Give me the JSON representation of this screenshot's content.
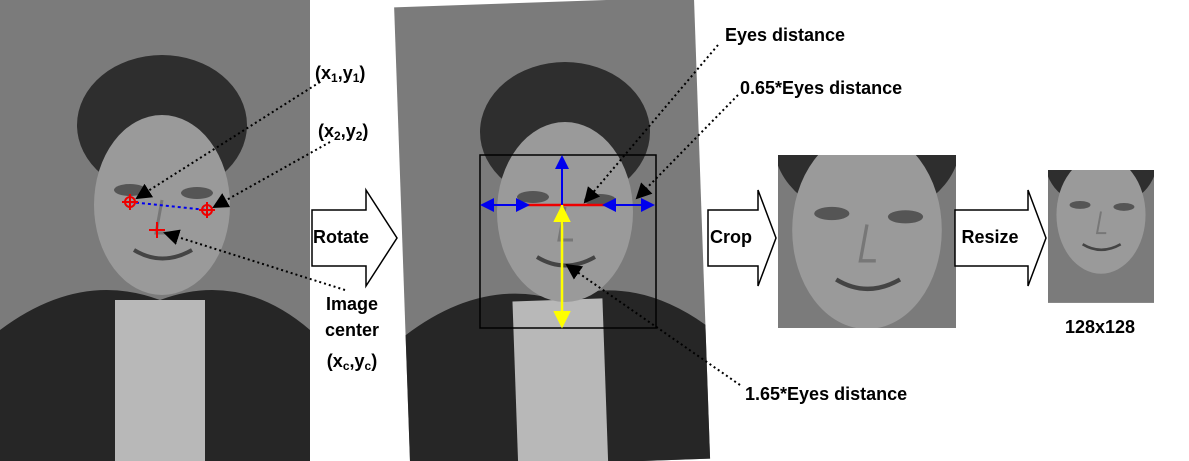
{
  "labels": {
    "p1": [
      "(x",
      "1",
      ",y",
      "1",
      ")"
    ],
    "p2": [
      "(x",
      "2",
      ",y",
      "2",
      ")"
    ],
    "image": "Image",
    "center": "center",
    "pc": [
      "(x",
      "c",
      ",y",
      "c",
      ")"
    ],
    "rotate": "Rotate",
    "eyes_distance": "Eyes distance",
    "width_ratio": "0.65*Eyes distance",
    "height_ratio": "1.65*Eyes distance",
    "crop": "Crop",
    "resize": "Resize",
    "size": "128x128"
  }
}
